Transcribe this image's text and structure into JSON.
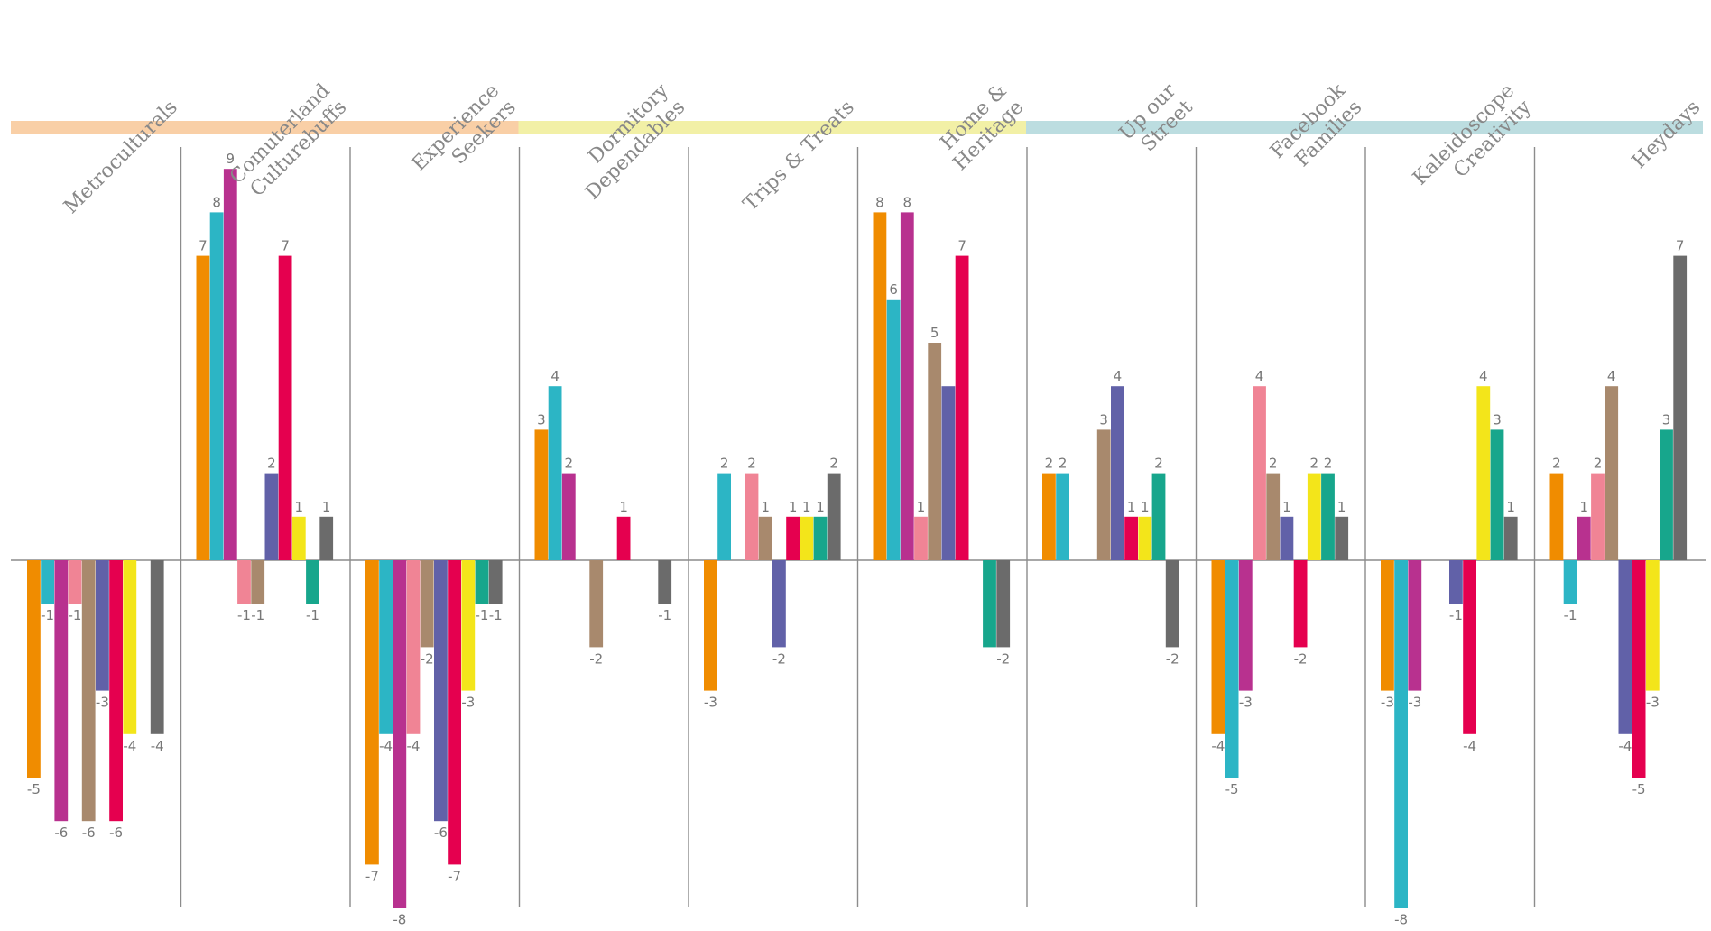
{
  "chart_data": {
    "type": "bar",
    "categories": [
      [
        "Metroculturals"
      ],
      [
        "Comuterland",
        "Culturebuffs"
      ],
      [
        "Experience",
        "Seekers"
      ],
      [
        "Dormitory",
        "Dependables"
      ],
      [
        "Trips & Treats"
      ],
      [
        "Home &",
        "Heritage"
      ],
      [
        "Up our",
        "Street"
      ],
      [
        "Facebook",
        "Families"
      ],
      [
        "Kaleidoscope",
        "Creativity"
      ],
      [
        "Heydays"
      ]
    ],
    "series_colors": [
      "#f08c00",
      "#2cb5c5",
      "#b8318f",
      "#f08495",
      "#a8896d",
      "#6161a8",
      "#e5004f",
      "#f3e51a",
      "#17a68c",
      "#6b6b6b"
    ],
    "values": [
      [
        -5,
        -1,
        -6,
        -1,
        -6,
        -3,
        -6,
        -4,
        null,
        -4
      ],
      [
        7,
        8,
        9,
        -1,
        -1,
        2,
        7,
        1,
        -1,
        1
      ],
      [
        -7,
        -4,
        -8,
        -4,
        -2,
        -6,
        -7,
        -3,
        -1,
        -1
      ],
      [
        3,
        4,
        2,
        null,
        -2,
        null,
        1,
        null,
        null,
        -1
      ],
      [
        -3,
        2,
        null,
        2,
        1,
        -2,
        1,
        1,
        1,
        2
      ],
      [
        8,
        6,
        8,
        1,
        5,
        4,
        7,
        null,
        -2,
        -2
      ],
      [
        2,
        2,
        null,
        null,
        3,
        4,
        1,
        1,
        2,
        -2
      ],
      [
        -4,
        -5,
        -3,
        4,
        2,
        1,
        -2,
        2,
        2,
        1
      ],
      [
        -3,
        -8,
        -3,
        null,
        null,
        -1,
        -4,
        4,
        3,
        1
      ],
      [
        2,
        -1,
        1,
        2,
        4,
        -4,
        -5,
        -3,
        3,
        7
      ]
    ],
    "value_label_overrides": [
      [
        null,
        null,
        null,
        null,
        null,
        null,
        null,
        null,
        null,
        null
      ],
      [
        null,
        null,
        null,
        null,
        null,
        null,
        null,
        null,
        null,
        null
      ],
      [
        null,
        null,
        null,
        null,
        null,
        null,
        null,
        null,
        null,
        null
      ],
      [
        null,
        null,
        null,
        null,
        null,
        null,
        null,
        null,
        null,
        null
      ],
      [
        null,
        null,
        null,
        null,
        null,
        null,
        null,
        null,
        null,
        null
      ],
      [
        null,
        null,
        null,
        null,
        null,
        "",
        null,
        null,
        "",
        null
      ],
      [
        null,
        null,
        null,
        null,
        null,
        null,
        null,
        null,
        null,
        null
      ],
      [
        null,
        null,
        null,
        null,
        null,
        null,
        null,
        null,
        null,
        null
      ],
      [
        null,
        null,
        null,
        null,
        null,
        null,
        null,
        null,
        null,
        null
      ],
      [
        null,
        null,
        null,
        null,
        null,
        null,
        null,
        null,
        null,
        null
      ]
    ],
    "group_bands": [
      {
        "from": 0,
        "to": 2,
        "color": "#f9cfa6"
      },
      {
        "from": 3,
        "to": 5,
        "color": "#f2f0a6"
      },
      {
        "from": 6,
        "to": 9,
        "color": "#bcdde0"
      }
    ],
    "ylim": [
      -8,
      9
    ],
    "legend": "none",
    "grid": false
  }
}
